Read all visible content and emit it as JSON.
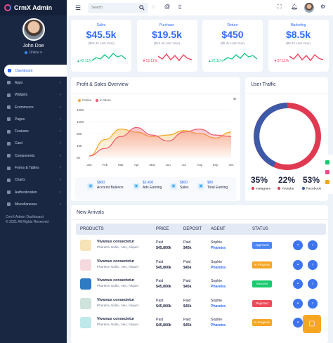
{
  "brand": {
    "name": "CrmX Admin"
  },
  "profile": {
    "name": "John Doe",
    "status": "Online"
  },
  "sidebar": {
    "items": [
      {
        "label": "Dashboard"
      },
      {
        "label": "Apps"
      },
      {
        "label": "Widgets"
      },
      {
        "label": "Ecommerce"
      },
      {
        "label": "Pages"
      },
      {
        "label": "Features"
      },
      {
        "label": "Card"
      },
      {
        "label": "Components"
      },
      {
        "label": "Forms & Tables"
      },
      {
        "label": "Charts"
      },
      {
        "label": "Authentication"
      },
      {
        "label": "Miscellaneous"
      }
    ],
    "footer_title": "CrmX Admin Dashboard",
    "footer_copy": "© 2021 All Rights Reserved"
  },
  "topbar": {
    "search_placeholder": "Search"
  },
  "stats": [
    {
      "label": "Sales",
      "value": "$45.5k",
      "sub": "($53.4k Last Year)",
      "pct": "42.11%",
      "trend": "up",
      "color": "#16c784"
    },
    {
      "label": "Purchase",
      "value": "$19.5k",
      "sub": "($13.4k Last Year)",
      "pct": "12.11%",
      "trend": "down",
      "color": "#f0425b"
    },
    {
      "label": "Return",
      "value": "$450",
      "sub": "($5.4k Last Year)",
      "pct": "22.11%",
      "trend": "up",
      "color": "#16c784"
    },
    {
      "label": "Marketing",
      "value": "$8.5k",
      "sub": "($5.4k Last Year)",
      "pct": "27.11%",
      "trend": "down",
      "color": "#f0425b"
    }
  ],
  "profit": {
    "title": "Profit & Sales Overview",
    "legend": [
      "Online",
      "In Store"
    ],
    "kpis": [
      {
        "value": "$800",
        "label": "Account Balance",
        "icon": "wallet-icon"
      },
      {
        "value": "$2,400",
        "label": "Ads Earning",
        "icon": "ads-icon"
      },
      {
        "value": "$800",
        "label": "Sales",
        "icon": "cart-icon"
      },
      {
        "value": "$80",
        "label": "Total Earning",
        "icon": "earning-icon"
      }
    ]
  },
  "chart_data": {
    "type": "area",
    "categories": [
      "Jan",
      "Feb",
      "Mar",
      "Apr",
      "May",
      "Jun",
      "Jul",
      "Aug",
      "Sep",
      "Oct"
    ],
    "ylim": [
      0,
      160
    ],
    "yticks": [
      "160K",
      "120K",
      "80K",
      "40K",
      "0K"
    ],
    "series": [
      {
        "name": "Online",
        "color": "#f6a623",
        "values": [
          5,
          60,
          95,
          85,
          70,
          75,
          90,
          80,
          65,
          85
        ]
      },
      {
        "name": "In Store",
        "color": "#ef5a6f",
        "values": [
          5,
          30,
          70,
          100,
          75,
          55,
          85,
          95,
          75,
          70
        ]
      }
    ]
  },
  "traffic": {
    "title": "User Traffic",
    "items": [
      {
        "pct": "35%",
        "label": "Instagram",
        "color": "#e03a52"
      },
      {
        "pct": "22%",
        "label": "Youtube",
        "color": "#e03a52"
      },
      {
        "pct": "53%",
        "label": "Facebook",
        "color": "#3d5aa8"
      }
    ]
  },
  "arrivals": {
    "title": "New Arrivals",
    "columns": [
      "PRODUCTS",
      "PRICE",
      "DEPOSIT",
      "AGENT",
      "STATUS"
    ],
    "rows": [
      {
        "name": "Vivamus consectetur",
        "desc": "Pharetra, Nulla , Nec, Aliquet",
        "pay": "Paid",
        "price": "$45,800k",
        "deposit": "$45k",
        "agent1": "Sophie",
        "agent2": "Pharetra",
        "status": "Approved",
        "scolor": "#4c86f5",
        "img": "#f7e3b8"
      },
      {
        "name": "Vivamus consectetur",
        "desc": "Pharetra, Nulla , Nec, Aliquet",
        "pay": "Paid",
        "price": "$45,800k",
        "deposit": "$45k",
        "agent1": "Sophie",
        "agent2": "Pharetra",
        "status": "In Progress",
        "scolor": "#f6a623",
        "img": "#f4d9de"
      },
      {
        "name": "Vivamus consectetur",
        "desc": "Pharetra, Nulla , Nec, Aliquet",
        "pay": "Paid",
        "price": "$45,800k",
        "deposit": "$45k",
        "agent1": "Sophie",
        "agent2": "Pharetra",
        "status": "Success",
        "scolor": "#18c96e",
        "img": "#2e7bc4"
      },
      {
        "name": "Vivamus consectetur",
        "desc": "Pharetra, Nulla , Nec, Aliquet",
        "pay": "Paid",
        "price": "$45,800k",
        "deposit": "$45k",
        "agent1": "Sophie",
        "agent2": "Pharetra",
        "status": "Rejected",
        "scolor": "#f04a5a",
        "img": "#cfe2dc"
      },
      {
        "name": "Vivamus consectetur",
        "desc": "Pharetra, Nulla , Nec, Aliquet",
        "pay": "Paid",
        "price": "$45,800k",
        "deposit": "$45k",
        "agent1": "Sophie",
        "agent2": "Pharetra",
        "status": "In Progress",
        "scolor": "#f6a623",
        "img": "#bfe8ea"
      }
    ]
  }
}
